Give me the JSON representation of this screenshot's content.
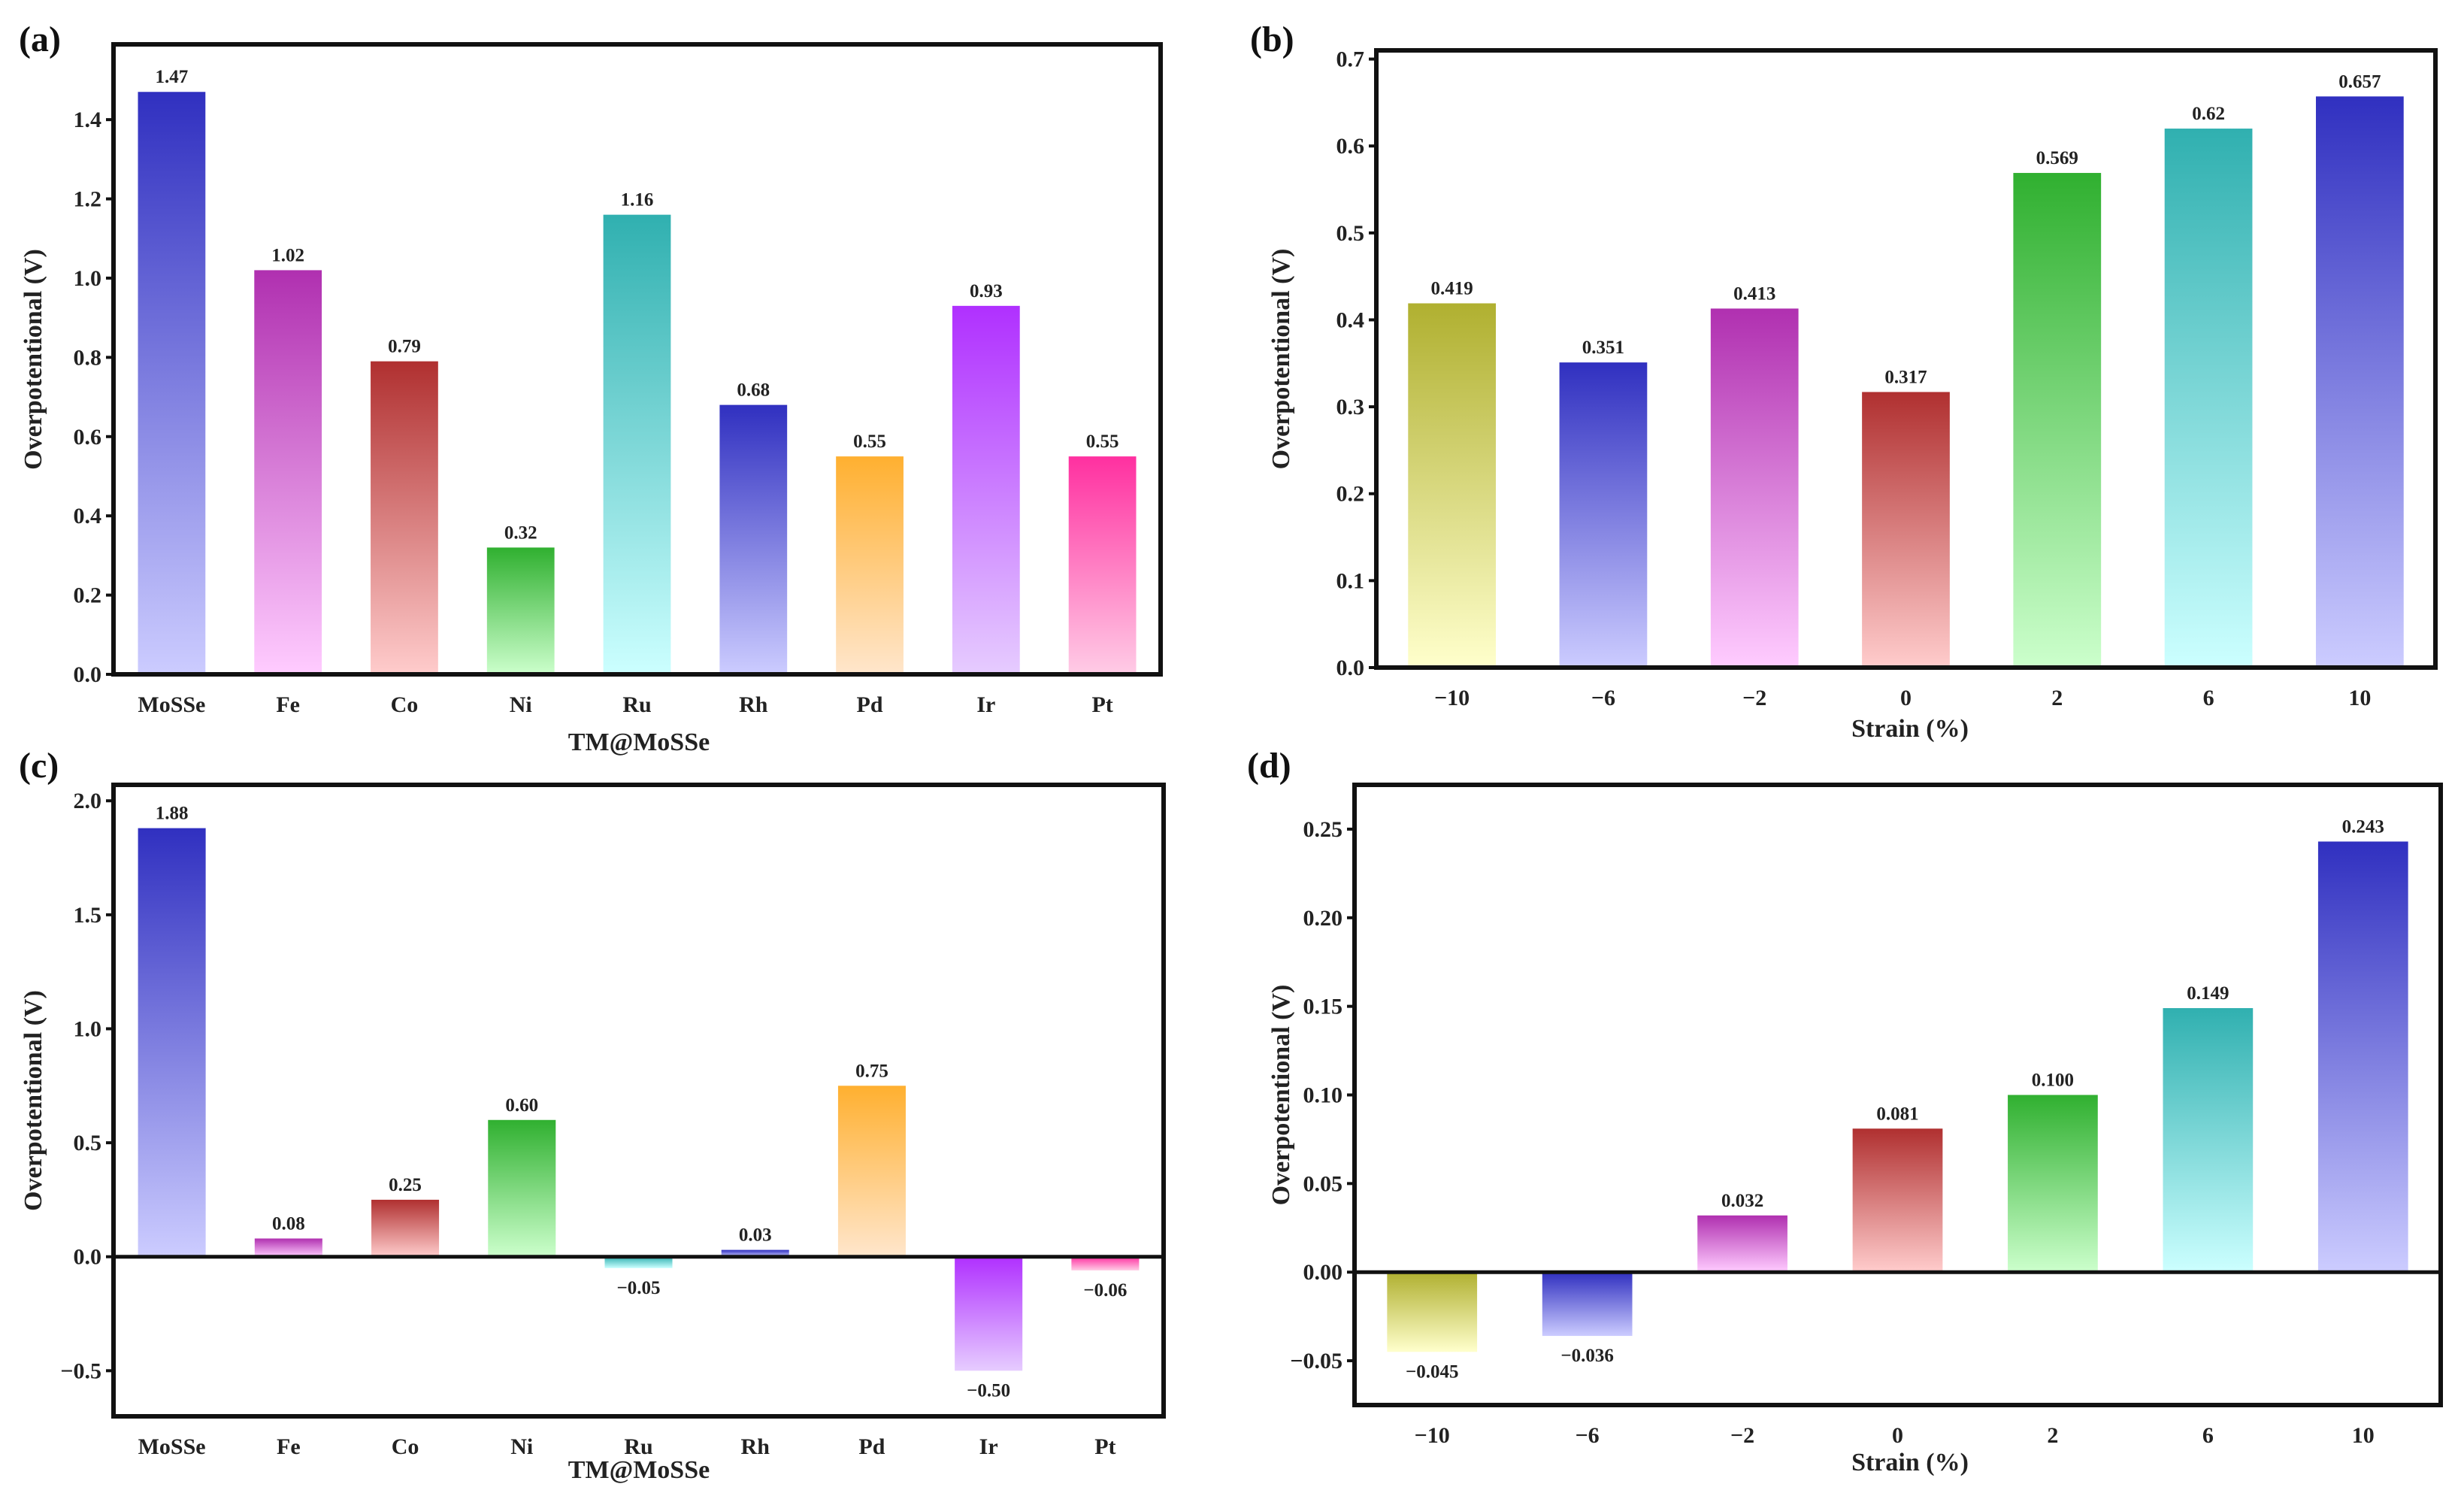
{
  "chart_data": [
    {
      "panel": "(a)",
      "type": "bar",
      "categories": [
        "MoSSe",
        "Fe",
        "Co",
        "Ni",
        "Ru",
        "Rh",
        "Pd",
        "Ir",
        "Pt"
      ],
      "values": [
        1.47,
        1.02,
        0.79,
        0.32,
        1.16,
        0.68,
        0.55,
        0.93,
        0.55
      ],
      "value_labels": [
        "1.47",
        "1.02",
        "0.79",
        "0.32",
        "1.16",
        "0.68",
        "0.55",
        "0.93",
        "0.55"
      ],
      "colors": [
        [
          "#3030c0",
          "#ccccff"
        ],
        [
          "#b030b0",
          "#ffccff"
        ],
        [
          "#b03030",
          "#ffcccc"
        ],
        [
          "#30b030",
          "#ccffcc"
        ],
        [
          "#30b0b0",
          "#ccffff"
        ],
        [
          "#3030c0",
          "#ccccff"
        ],
        [
          "#ffb030",
          "#ffe6cc"
        ],
        [
          "#b030ff",
          "#e6ccff"
        ],
        [
          "#ff30a0",
          "#ffcce6"
        ]
      ],
      "xlabel": "TM@MoSSe",
      "ylabel": "Overpotentional (V)",
      "ylim": [
        0,
        1.59
      ],
      "yticks": [
        "0.0",
        "0.2",
        "0.4",
        "0.6",
        "0.8",
        "1.0",
        "1.2",
        "1.4"
      ],
      "grid": false
    },
    {
      "panel": "(b)",
      "type": "bar",
      "categories": [
        "−10",
        "−6",
        "−2",
        "0",
        "2",
        "6",
        "10"
      ],
      "values": [
        0.419,
        0.351,
        0.413,
        0.317,
        0.569,
        0.62,
        0.657
      ],
      "value_labels": [
        "0.419",
        "0.351",
        "0.413",
        "0.317",
        "0.569",
        "0.62",
        "0.657"
      ],
      "colors": [
        [
          "#b0b030",
          "#ffffcc"
        ],
        [
          "#3030c0",
          "#ccccff"
        ],
        [
          "#b030b0",
          "#ffccff"
        ],
        [
          "#b03030",
          "#ffcccc"
        ],
        [
          "#30b030",
          "#ccffcc"
        ],
        [
          "#30b0b0",
          "#ccffff"
        ],
        [
          "#3030c0",
          "#ccccff"
        ]
      ],
      "xlabel": "Strain (%)",
      "ylabel": "Overpotentional (V)",
      "ylim": [
        0,
        0.71
      ],
      "yticks": [
        "0.0",
        "0.1",
        "0.2",
        "0.3",
        "0.4",
        "0.5",
        "0.6",
        "0.7"
      ],
      "grid": false
    },
    {
      "panel": "(c)",
      "type": "bar",
      "categories": [
        "MoSSe",
        "Fe",
        "Co",
        "Ni",
        "Ru",
        "Rh",
        "Pd",
        "Ir",
        "Pt"
      ],
      "values": [
        1.88,
        0.08,
        0.25,
        0.6,
        -0.05,
        0.03,
        0.75,
        -0.5,
        -0.06
      ],
      "value_labels": [
        "1.88",
        "0.08",
        "0.25",
        "0.60",
        "−0.05",
        "0.03",
        "0.75",
        "−0.50",
        "−0.06"
      ],
      "colors": [
        [
          "#3030c0",
          "#ccccff"
        ],
        [
          "#b030b0",
          "#ffccff"
        ],
        [
          "#b03030",
          "#ffcccc"
        ],
        [
          "#30b030",
          "#ccffcc"
        ],
        [
          "#30b0b0",
          "#ccffff"
        ],
        [
          "#3030c0",
          "#ccccff"
        ],
        [
          "#ffb030",
          "#ffe6cc"
        ],
        [
          "#b030ff",
          "#e6ccff"
        ],
        [
          "#ff30a0",
          "#ffcce6"
        ]
      ],
      "xlabel": "TM@MoSSe",
      "ylabel": "Overpotentional (V)",
      "ylim": [
        -0.7,
        2.07
      ],
      "yticks": [
        "−0.5",
        "0.0",
        "0.5",
        "1.0",
        "1.5",
        "2.0"
      ],
      "grid": false
    },
    {
      "panel": "(d)",
      "type": "bar",
      "categories": [
        "−10",
        "−6",
        "−2",
        "0",
        "2",
        "6",
        "10"
      ],
      "values": [
        -0.045,
        -0.036,
        0.032,
        0.081,
        0.1,
        0.149,
        0.243
      ],
      "value_labels": [
        "−0.045",
        "−0.036",
        "0.032",
        "0.081",
        "0.100",
        "0.149",
        "0.243"
      ],
      "colors": [
        [
          "#b0b030",
          "#ffffcc"
        ],
        [
          "#3030c0",
          "#ccccff"
        ],
        [
          "#b030b0",
          "#ffccff"
        ],
        [
          "#b03030",
          "#ffcccc"
        ],
        [
          "#30b030",
          "#ccffcc"
        ],
        [
          "#30b0b0",
          "#ccffff"
        ],
        [
          "#3030c0",
          "#ccccff"
        ]
      ],
      "xlabel": "Strain (%)",
      "ylabel": "Overpotentional (V)",
      "ylim": [
        -0.075,
        0.275
      ],
      "yticks": [
        "−0.05",
        "0.00",
        "0.05",
        "0.10",
        "0.15",
        "0.20",
        "0.25"
      ],
      "grid": false
    }
  ]
}
